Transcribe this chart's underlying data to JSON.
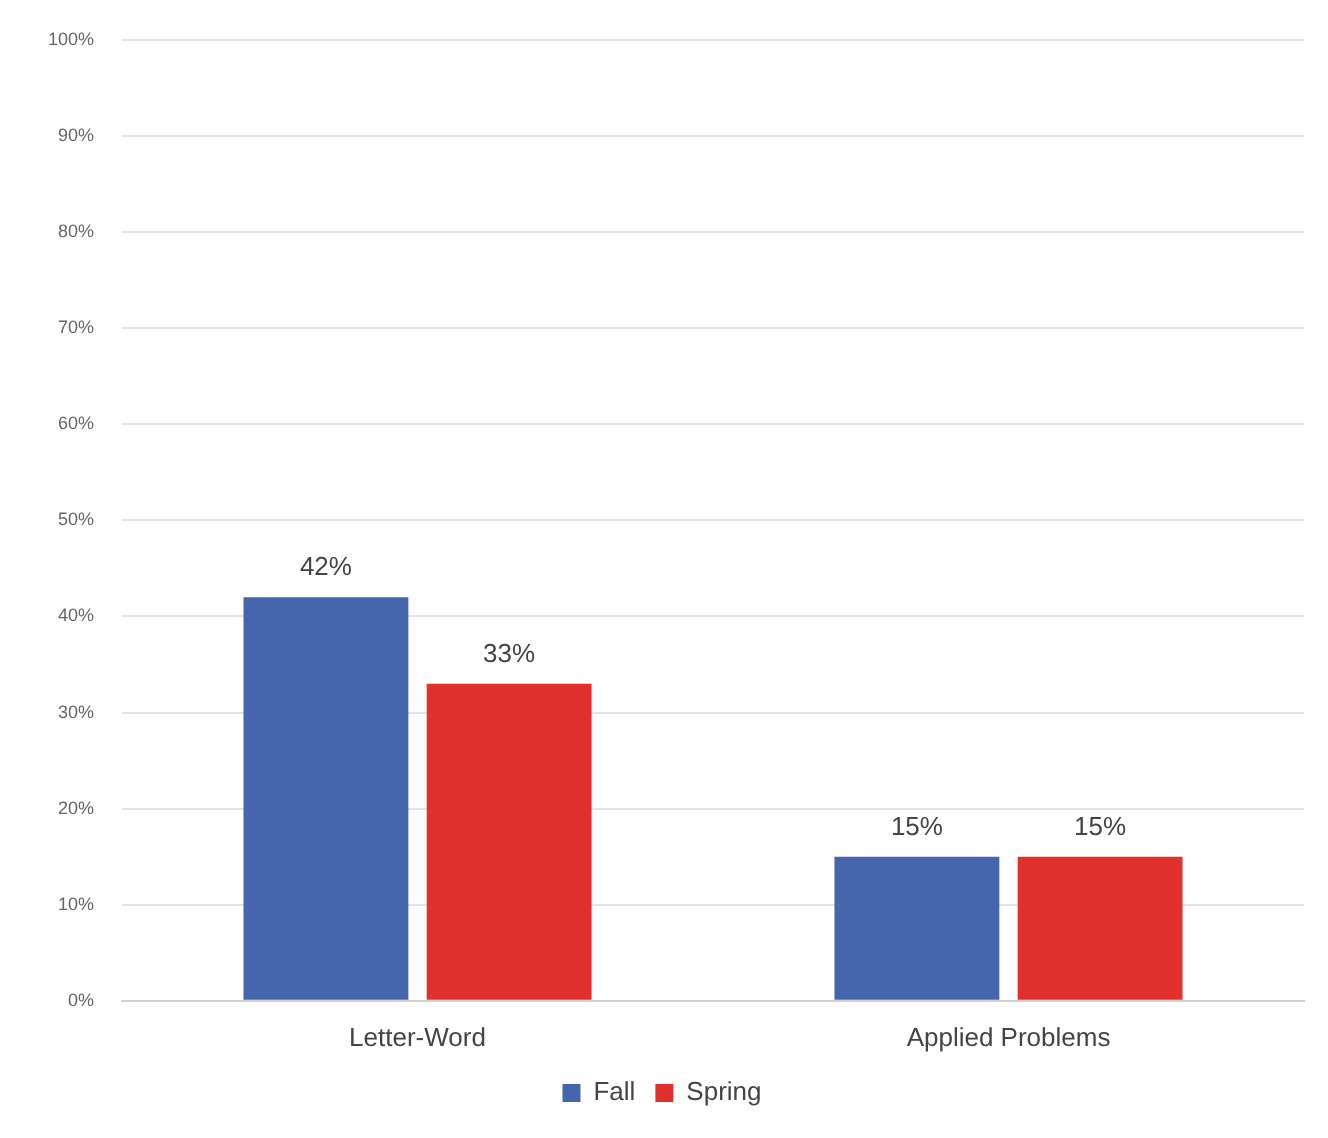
{
  "chart_data": {
    "type": "bar",
    "categories": [
      "Letter-Word",
      "Applied Problems"
    ],
    "series": [
      {
        "name": "Fall",
        "color": "#4566ad",
        "values": [
          42,
          15
        ],
        "value_labels": [
          "42%",
          "15%"
        ]
      },
      {
        "name": "Spring",
        "color": "#e0312c",
        "values": [
          33,
          15
        ],
        "value_labels": [
          "33%",
          "15%"
        ]
      }
    ],
    "ylim": [
      0,
      100
    ],
    "yticks": [
      {
        "value": 0,
        "label": "0%"
      },
      {
        "value": 10,
        "label": "10%"
      },
      {
        "value": 20,
        "label": "20%"
      },
      {
        "value": 30,
        "label": "30%"
      },
      {
        "value": 40,
        "label": "40%"
      },
      {
        "value": 50,
        "label": "50%"
      },
      {
        "value": 60,
        "label": "60%"
      },
      {
        "value": 70,
        "label": "70%"
      },
      {
        "value": 80,
        "label": "80%"
      },
      {
        "value": 90,
        "label": "90%"
      },
      {
        "value": 100,
        "label": "100%"
      }
    ],
    "grid": "y",
    "legend": "bottom"
  }
}
